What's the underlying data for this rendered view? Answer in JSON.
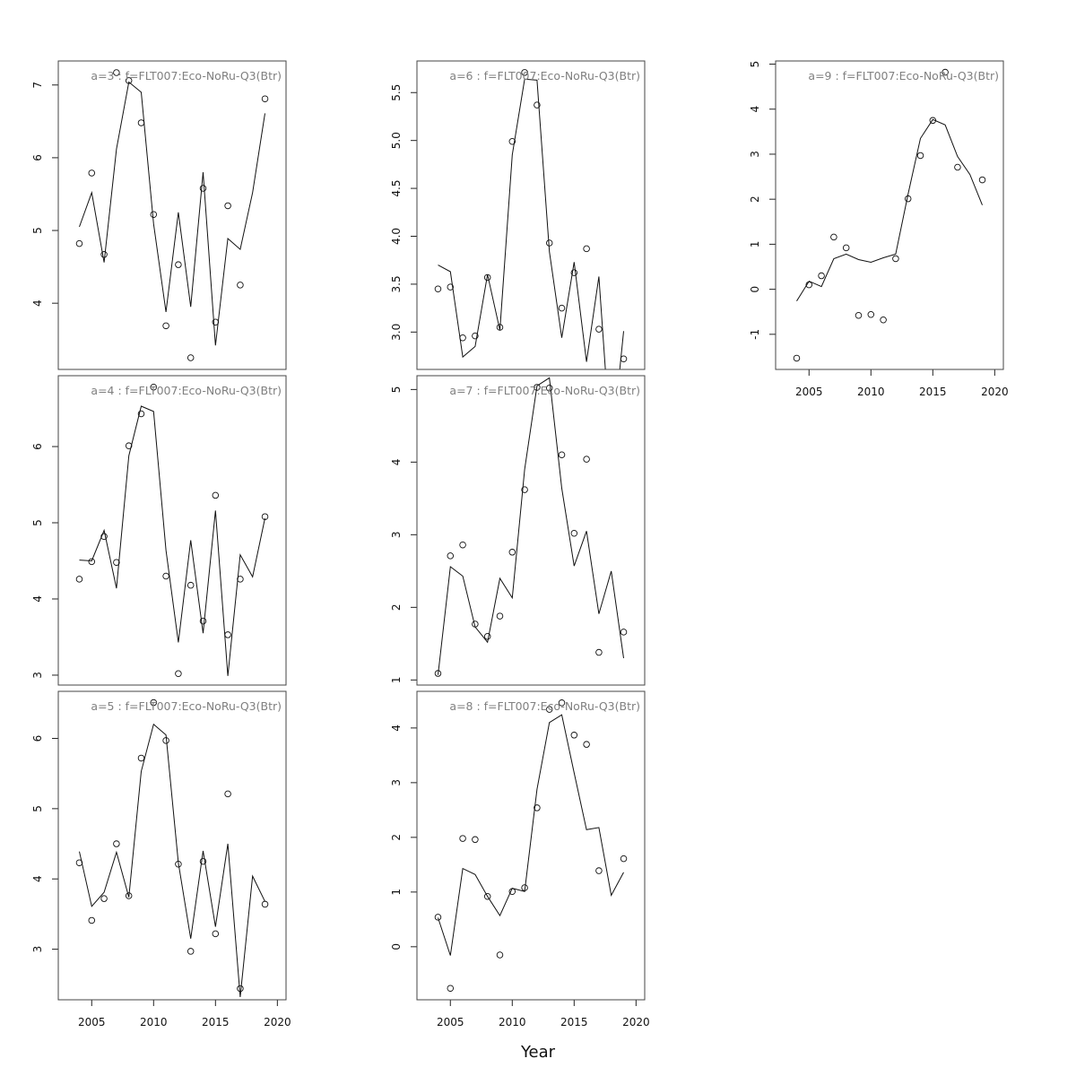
{
  "chart_data": {
    "type": "scatter",
    "xlabel": "Year",
    "xlim": [
      2002.3,
      2020.7
    ],
    "xticks": [
      2005,
      2010,
      2015,
      2020
    ],
    "panels": [
      {
        "title": "a=3  :  f=FLT007:Eco-NoRu-Q3(Btr)",
        "ylim": [
          3.09,
          7.33
        ],
        "yticks": [
          4,
          5,
          6,
          7
        ],
        "show_x_axis": false,
        "points": [
          [
            2004,
            4.82
          ],
          [
            2005,
            5.79
          ],
          [
            2006,
            4.67
          ],
          [
            2007,
            7.17
          ],
          [
            2008,
            7.06
          ],
          [
            2009,
            6.48
          ],
          [
            2010,
            5.22
          ],
          [
            2011,
            3.69
          ],
          [
            2012,
            4.53
          ],
          [
            2013,
            3.25
          ],
          [
            2014,
            5.58
          ],
          [
            2015,
            3.74
          ],
          [
            2016,
            5.34
          ],
          [
            2017,
            4.25
          ],
          [
            2019,
            6.81
          ]
        ],
        "line": [
          [
            2004,
            5.05
          ],
          [
            2005,
            5.52
          ],
          [
            2006,
            4.56
          ],
          [
            2007,
            6.12
          ],
          [
            2008,
            7.04
          ],
          [
            2009,
            6.9
          ],
          [
            2010,
            5.09
          ],
          [
            2011,
            3.88
          ],
          [
            2012,
            5.25
          ],
          [
            2013,
            3.95
          ],
          [
            2014,
            5.8
          ],
          [
            2015,
            3.42
          ],
          [
            2016,
            4.89
          ],
          [
            2017,
            4.74
          ],
          [
            2018,
            5.52
          ],
          [
            2019,
            6.61
          ]
        ]
      },
      {
        "title": "a=4  :  f=FLT007:Eco-NoRu-Q3(Btr)",
        "ylim": [
          2.87,
          6.93
        ],
        "yticks": [
          3,
          4,
          5,
          6
        ],
        "show_x_axis": false,
        "points": [
          [
            2004,
            4.26
          ],
          [
            2005,
            4.49
          ],
          [
            2006,
            4.82
          ],
          [
            2007,
            4.48
          ],
          [
            2008,
            6.01
          ],
          [
            2009,
            6.43
          ],
          [
            2010,
            6.78
          ],
          [
            2011,
            4.3
          ],
          [
            2012,
            3.02
          ],
          [
            2013,
            4.18
          ],
          [
            2014,
            3.71
          ],
          [
            2015,
            5.36
          ],
          [
            2016,
            3.53
          ],
          [
            2017,
            4.26
          ],
          [
            2019,
            5.08
          ]
        ],
        "line": [
          [
            2004,
            4.51
          ],
          [
            2005,
            4.5
          ],
          [
            2006,
            4.9
          ],
          [
            2007,
            4.14
          ],
          [
            2008,
            5.88
          ],
          [
            2009,
            6.53
          ],
          [
            2010,
            6.46
          ],
          [
            2011,
            4.64
          ],
          [
            2012,
            3.43
          ],
          [
            2013,
            4.77
          ],
          [
            2014,
            3.55
          ],
          [
            2015,
            5.16
          ],
          [
            2016,
            2.99
          ],
          [
            2017,
            4.58
          ],
          [
            2018,
            4.29
          ],
          [
            2019,
            5.06
          ]
        ]
      },
      {
        "title": "a=5  :  f=FLT007:Eco-NoRu-Q3(Btr)",
        "ylim": [
          2.28,
          6.67
        ],
        "yticks": [
          3,
          4,
          5,
          6
        ],
        "show_x_axis": true,
        "points": [
          [
            2004,
            4.23
          ],
          [
            2005,
            3.41
          ],
          [
            2006,
            3.72
          ],
          [
            2007,
            4.5
          ],
          [
            2008,
            3.76
          ],
          [
            2009,
            5.72
          ],
          [
            2010,
            6.51
          ],
          [
            2011,
            5.97
          ],
          [
            2012,
            4.21
          ],
          [
            2013,
            2.97
          ],
          [
            2014,
            4.25
          ],
          [
            2015,
            3.22
          ],
          [
            2016,
            5.21
          ],
          [
            2017,
            2.44
          ],
          [
            2019,
            3.64
          ]
        ],
        "line": [
          [
            2004,
            4.39
          ],
          [
            2005,
            3.61
          ],
          [
            2006,
            3.81
          ],
          [
            2007,
            4.38
          ],
          [
            2008,
            3.74
          ],
          [
            2009,
            5.53
          ],
          [
            2010,
            6.2
          ],
          [
            2011,
            6.05
          ],
          [
            2012,
            4.23
          ],
          [
            2013,
            3.15
          ],
          [
            2014,
            4.4
          ],
          [
            2015,
            3.32
          ],
          [
            2016,
            4.5
          ],
          [
            2017,
            2.32
          ],
          [
            2018,
            4.04
          ],
          [
            2019,
            3.68
          ]
        ]
      },
      {
        "title": "a=6  :  f=FLT007:Eco-NoRu-Q3(Btr)",
        "ylim": [
          2.61,
          5.83
        ],
        "yticks": [
          3.0,
          3.5,
          4.0,
          4.5,
          5.0,
          5.5
        ],
        "ytick_labels": [
          "3.0",
          "3.5",
          "4.0",
          "4.5",
          "5.0",
          "5.5"
        ],
        "show_x_axis": false,
        "points": [
          [
            2004,
            3.45
          ],
          [
            2005,
            3.47
          ],
          [
            2006,
            2.94
          ],
          [
            2007,
            2.96
          ],
          [
            2008,
            3.57
          ],
          [
            2009,
            3.05
          ],
          [
            2010,
            4.99
          ],
          [
            2011,
            5.71
          ],
          [
            2012,
            5.37
          ],
          [
            2013,
            3.93
          ],
          [
            2014,
            3.25
          ],
          [
            2015,
            3.62
          ],
          [
            2016,
            3.87
          ],
          [
            2017,
            3.03
          ],
          [
            2019,
            2.72
          ]
        ],
        "line": [
          [
            2004,
            3.7
          ],
          [
            2005,
            3.63
          ],
          [
            2006,
            2.74
          ],
          [
            2007,
            2.85
          ],
          [
            2008,
            3.6
          ],
          [
            2009,
            3.02
          ],
          [
            2010,
            4.85
          ],
          [
            2011,
            5.64
          ],
          [
            2012,
            5.63
          ],
          [
            2013,
            3.84
          ],
          [
            2014,
            2.94
          ],
          [
            2015,
            3.73
          ],
          [
            2016,
            2.69
          ],
          [
            2017,
            3.58
          ],
          [
            2018,
            1.73
          ],
          [
            2019,
            3.01
          ]
        ]
      },
      {
        "title": "a=7  :  f=FLT007:Eco-NoRu-Q3(Btr)",
        "ylim": [
          0.93,
          5.19
        ],
        "yticks": [
          1,
          2,
          3,
          4,
          5
        ],
        "show_x_axis": false,
        "points": [
          [
            2004,
            1.09
          ],
          [
            2005,
            2.71
          ],
          [
            2006,
            2.86
          ],
          [
            2007,
            1.77
          ],
          [
            2008,
            1.6
          ],
          [
            2009,
            1.88
          ],
          [
            2010,
            2.76
          ],
          [
            2011,
            3.62
          ],
          [
            2012,
            5.03
          ],
          [
            2013,
            5.02
          ],
          [
            2014,
            4.1
          ],
          [
            2015,
            3.02
          ],
          [
            2016,
            4.04
          ],
          [
            2017,
            1.38
          ],
          [
            2019,
            1.66
          ]
        ],
        "line": [
          [
            2004,
            1.07
          ],
          [
            2005,
            2.56
          ],
          [
            2006,
            2.43
          ],
          [
            2007,
            1.73
          ],
          [
            2008,
            1.52
          ],
          [
            2009,
            2.4
          ],
          [
            2010,
            2.13
          ],
          [
            2011,
            3.9
          ],
          [
            2012,
            5.05
          ],
          [
            2013,
            5.16
          ],
          [
            2014,
            3.64
          ],
          [
            2015,
            2.57
          ],
          [
            2016,
            3.05
          ],
          [
            2017,
            1.91
          ],
          [
            2018,
            2.5
          ],
          [
            2019,
            1.3
          ]
        ]
      },
      {
        "title": "a=8  :  f=FLT007:Eco-NoRu-Q3(Btr)",
        "ylim": [
          -0.97,
          4.67
        ],
        "yticks": [
          0,
          1,
          2,
          3,
          4
        ],
        "show_x_axis": true,
        "points": [
          [
            2004,
            0.54
          ],
          [
            2005,
            -0.76
          ],
          [
            2006,
            1.98
          ],
          [
            2007,
            1.96
          ],
          [
            2008,
            0.92
          ],
          [
            2009,
            -0.15
          ],
          [
            2010,
            1.01
          ],
          [
            2011,
            1.08
          ],
          [
            2012,
            2.54
          ],
          [
            2013,
            4.34
          ],
          [
            2014,
            4.46
          ],
          [
            2015,
            3.87
          ],
          [
            2016,
            3.7
          ],
          [
            2017,
            1.39
          ],
          [
            2019,
            1.61
          ]
        ],
        "line": [
          [
            2004,
            0.53
          ],
          [
            2005,
            -0.16
          ],
          [
            2006,
            1.43
          ],
          [
            2007,
            1.32
          ],
          [
            2008,
            0.92
          ],
          [
            2009,
            0.57
          ],
          [
            2010,
            1.07
          ],
          [
            2011,
            1.01
          ],
          [
            2012,
            2.88
          ],
          [
            2013,
            4.1
          ],
          [
            2014,
            4.24
          ],
          [
            2015,
            3.18
          ],
          [
            2016,
            2.14
          ],
          [
            2017,
            2.18
          ],
          [
            2018,
            0.94
          ],
          [
            2019,
            1.36
          ]
        ]
      },
      {
        "title": "a=9  :  f=FLT007:Eco-NoRu-Q3(Btr)",
        "ylim": [
          -1.78,
          5.07
        ],
        "yticks": [
          -1,
          0,
          1,
          2,
          3,
          4,
          5
        ],
        "show_x_axis": true,
        "points": [
          [
            2004,
            -1.53
          ],
          [
            2005,
            0.1
          ],
          [
            2006,
            0.3
          ],
          [
            2007,
            1.16
          ],
          [
            2008,
            0.92
          ],
          [
            2009,
            -0.58
          ],
          [
            2010,
            -0.56
          ],
          [
            2011,
            -0.68
          ],
          [
            2012,
            0.68
          ],
          [
            2013,
            2.01
          ],
          [
            2014,
            2.97
          ],
          [
            2015,
            3.75
          ],
          [
            2016,
            4.82
          ],
          [
            2017,
            2.71
          ],
          [
            2019,
            2.43
          ]
        ],
        "line": [
          [
            2004,
            -0.26
          ],
          [
            2005,
            0.18
          ],
          [
            2006,
            0.06
          ],
          [
            2007,
            0.68
          ],
          [
            2008,
            0.78
          ],
          [
            2009,
            0.66
          ],
          [
            2010,
            0.6
          ],
          [
            2011,
            0.7
          ],
          [
            2012,
            0.78
          ],
          [
            2013,
            2.11
          ],
          [
            2014,
            3.35
          ],
          [
            2015,
            3.77
          ],
          [
            2016,
            3.65
          ],
          [
            2017,
            2.95
          ],
          [
            2018,
            2.55
          ],
          [
            2019,
            1.87
          ]
        ]
      }
    ]
  }
}
